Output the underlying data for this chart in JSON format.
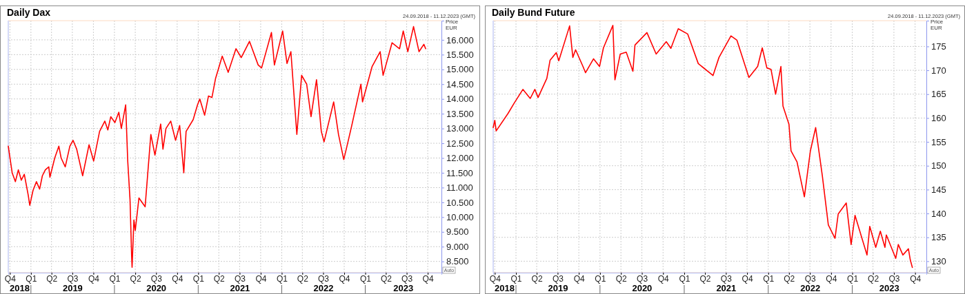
{
  "chart_data": [
    {
      "type": "line",
      "title": "Daily Dax",
      "subtitle": "24.09.2018 - 11.12.2023 (GMT)",
      "ylabel": "Price EUR",
      "grid": true,
      "marker": "none",
      "line_style": "solid",
      "xlim": [
        "2018-09-24",
        "2023-11-30"
      ],
      "ylim": [
        8120,
        16650
      ],
      "xticks": [
        {
          "value": "2018-10-01",
          "label": "Q4"
        },
        {
          "value": "2019-01-01",
          "label": "Q1"
        },
        {
          "value": "2019-04-01",
          "label": "Q2"
        },
        {
          "value": "2019-07-01",
          "label": "Q3"
        },
        {
          "value": "2019-10-01",
          "label": "Q4"
        },
        {
          "value": "2020-01-01",
          "label": "Q1"
        },
        {
          "value": "2020-04-01",
          "label": "Q2"
        },
        {
          "value": "2020-07-01",
          "label": "Q3"
        },
        {
          "value": "2020-10-01",
          "label": "Q4"
        },
        {
          "value": "2021-01-01",
          "label": "Q1"
        },
        {
          "value": "2021-04-01",
          "label": "Q2"
        },
        {
          "value": "2021-07-01",
          "label": "Q3"
        },
        {
          "value": "2021-10-01",
          "label": "Q4"
        },
        {
          "value": "2022-01-01",
          "label": "Q1"
        },
        {
          "value": "2022-04-01",
          "label": "Q2"
        },
        {
          "value": "2022-07-01",
          "label": "Q3"
        },
        {
          "value": "2022-10-01",
          "label": "Q4"
        },
        {
          "value": "2023-01-01",
          "label": "Q1"
        },
        {
          "value": "2023-04-01",
          "label": "Q2"
        },
        {
          "value": "2023-07-01",
          "label": "Q3"
        },
        {
          "value": "2023-10-01",
          "label": "Q4"
        }
      ],
      "yticks": [
        {
          "value": 8500,
          "label": "8.500"
        },
        {
          "value": 9000,
          "label": "9.000"
        },
        {
          "value": 9500,
          "label": "9.500"
        },
        {
          "value": 10000,
          "label": "10.000"
        },
        {
          "value": 10500,
          "label": "10.500"
        },
        {
          "value": 11000,
          "label": "11.000"
        },
        {
          "value": 11500,
          "label": "11.500"
        },
        {
          "value": 12000,
          "label": "12.000"
        },
        {
          "value": 12500,
          "label": "12.500"
        },
        {
          "value": 13000,
          "label": "13.000"
        },
        {
          "value": 13500,
          "label": "13.500"
        },
        {
          "value": 14000,
          "label": "14.000"
        },
        {
          "value": 14500,
          "label": "14.500"
        },
        {
          "value": 15000,
          "label": "15.000"
        },
        {
          "value": 15500,
          "label": "15.500"
        },
        {
          "value": 16000,
          "label": "16.000"
        }
      ],
      "annotations": [
        "2018",
        "2019",
        "2020",
        "2021",
        "2022",
        "2023",
        "Auto"
      ],
      "series": [
        {
          "color": "#ff0000",
          "x": [
            "2018-09-24",
            "2018-10-11",
            "2018-10-25",
            "2018-11-07",
            "2018-11-20",
            "2018-12-03",
            "2018-12-20",
            "2018-12-27",
            "2019-01-10",
            "2019-01-25",
            "2019-02-08",
            "2019-02-20",
            "2019-03-05",
            "2019-03-20",
            "2019-03-25",
            "2019-04-15",
            "2019-05-03",
            "2019-05-13",
            "2019-05-31",
            "2019-06-20",
            "2019-07-04",
            "2019-07-20",
            "2019-08-15",
            "2019-09-12",
            "2019-10-02",
            "2019-10-28",
            "2019-11-20",
            "2019-12-03",
            "2019-12-16",
            "2020-01-03",
            "2020-01-20",
            "2020-01-31",
            "2020-02-19",
            "2020-02-28",
            "2020-03-09",
            "2020-03-16",
            "2020-03-18",
            "2020-03-26",
            "2020-04-01",
            "2020-04-17",
            "2020-05-14",
            "2020-06-08",
            "2020-06-26",
            "2020-07-21",
            "2020-07-31",
            "2020-08-13",
            "2020-09-03",
            "2020-09-24",
            "2020-10-12",
            "2020-10-30",
            "2020-11-09",
            "2020-12-10",
            "2020-12-29",
            "2021-01-08",
            "2021-01-29",
            "2021-02-15",
            "2021-03-02",
            "2021-03-18",
            "2021-04-16",
            "2021-05-12",
            "2021-06-15",
            "2021-07-08",
            "2021-08-13",
            "2021-09-20",
            "2021-10-05",
            "2021-11-17",
            "2021-11-30",
            "2022-01-05",
            "2022-01-24",
            "2022-02-10",
            "2022-03-08",
            "2022-03-29",
            "2022-04-20",
            "2022-05-09",
            "2022-06-02",
            "2022-06-23",
            "2022-07-05",
            "2022-08-16",
            "2022-09-06",
            "2022-09-29",
            "2022-10-10",
            "2022-11-03",
            "2022-12-13",
            "2022-12-20",
            "2023-01-31",
            "2023-03-07",
            "2023-03-20",
            "2023-04-28",
            "2023-05-31",
            "2023-06-16",
            "2023-07-06",
            "2023-07-31",
            "2023-08-24",
            "2023-09-14",
            "2023-09-22"
          ],
          "values": [
            12400,
            11500,
            11200,
            11600,
            11250,
            11450,
            10750,
            10400,
            10900,
            11200,
            10950,
            11400,
            11600,
            11700,
            11350,
            12000,
            12400,
            12000,
            11700,
            12400,
            12600,
            12300,
            11400,
            12450,
            11900,
            12900,
            13250,
            12950,
            13400,
            13200,
            13550,
            13000,
            13800,
            11900,
            10600,
            8700,
            8300,
            9900,
            9550,
            10650,
            10350,
            12800,
            12100,
            13150,
            12300,
            13000,
            13250,
            12600,
            13100,
            11500,
            12900,
            13300,
            13800,
            14000,
            13450,
            14100,
            14050,
            14700,
            15450,
            14900,
            15700,
            15400,
            15950,
            15150,
            15050,
            16250,
            15150,
            16300,
            15200,
            15600,
            12800,
            14800,
            14500,
            13400,
            14650,
            12900,
            12550,
            13900,
            12800,
            11950,
            12300,
            13100,
            14500,
            13900,
            15100,
            15600,
            14800,
            15900,
            15700,
            16300,
            15600,
            16450,
            15600,
            15850,
            15700
          ]
        }
      ]
    },
    {
      "type": "line",
      "title": "Daily Bund Future",
      "subtitle": "24.09.2018 - 11.12.2023 (GMT)",
      "ylabel": "Price EUR",
      "grid": true,
      "marker": "none",
      "line_style": "solid",
      "xlim": [
        "2018-09-24",
        "2023-11-19"
      ],
      "ylim": [
        127.6,
        180.4
      ],
      "xticks": [
        {
          "value": "2018-10-01",
          "label": "Q4"
        },
        {
          "value": "2019-01-01",
          "label": "Q1"
        },
        {
          "value": "2019-04-01",
          "label": "Q2"
        },
        {
          "value": "2019-07-01",
          "label": "Q3"
        },
        {
          "value": "2019-10-01",
          "label": "Q4"
        },
        {
          "value": "2020-01-01",
          "label": "Q1"
        },
        {
          "value": "2020-04-01",
          "label": "Q2"
        },
        {
          "value": "2020-07-01",
          "label": "Q3"
        },
        {
          "value": "2020-10-01",
          "label": "Q4"
        },
        {
          "value": "2021-01-01",
          "label": "Q1"
        },
        {
          "value": "2021-04-01",
          "label": "Q2"
        },
        {
          "value": "2021-07-01",
          "label": "Q3"
        },
        {
          "value": "2021-10-01",
          "label": "Q4"
        },
        {
          "value": "2022-01-01",
          "label": "Q1"
        },
        {
          "value": "2022-04-01",
          "label": "Q2"
        },
        {
          "value": "2022-07-01",
          "label": "Q3"
        },
        {
          "value": "2022-10-01",
          "label": "Q4"
        },
        {
          "value": "2023-01-01",
          "label": "Q1"
        },
        {
          "value": "2023-04-01",
          "label": "Q2"
        },
        {
          "value": "2023-07-01",
          "label": "Q3"
        },
        {
          "value": "2023-10-01",
          "label": "Q4"
        }
      ],
      "yticks": [
        130,
        135,
        140,
        145,
        150,
        155,
        160,
        165,
        170,
        175
      ],
      "annotations": [
        "2018",
        "2019",
        "2020",
        "2021",
        "2022",
        "2023",
        "Auto"
      ],
      "series": [
        {
          "color": "#ff0000",
          "x": [
            "2018-09-24",
            "2018-10-01",
            "2018-10-07",
            "2018-11-28",
            "2018-12-24",
            "2019-01-31",
            "2019-03-04",
            "2019-03-24",
            "2019-04-07",
            "2019-05-15",
            "2019-05-29",
            "2019-06-25",
            "2019-07-06",
            "2019-08-22",
            "2019-09-05",
            "2019-09-17",
            "2019-10-19",
            "2019-10-30",
            "2019-12-04",
            "2019-12-30",
            "2020-01-16",
            "2020-02-26",
            "2020-03-06",
            "2020-03-29",
            "2020-04-24",
            "2020-05-23",
            "2020-06-01",
            "2020-07-23",
            "2020-09-01",
            "2020-10-15",
            "2020-11-04",
            "2020-12-06",
            "2021-01-16",
            "2021-03-03",
            "2021-05-06",
            "2021-06-01",
            "2021-07-23",
            "2021-08-18",
            "2021-10-09",
            "2021-11-16",
            "2021-12-06",
            "2021-12-26",
            "2022-01-13",
            "2022-02-02",
            "2022-02-25",
            "2022-03-06",
            "2022-04-01",
            "2022-04-10",
            "2022-05-06",
            "2022-06-07",
            "2022-07-03",
            "2022-07-26",
            "2022-08-24",
            "2022-09-19",
            "2022-10-18",
            "2022-11-01",
            "2022-12-06",
            "2022-12-27",
            "2023-01-13",
            "2023-03-06",
            "2023-03-18",
            "2023-04-13",
            "2023-05-03",
            "2023-05-23",
            "2023-05-29",
            "2023-07-09",
            "2023-07-20",
            "2023-08-09",
            "2023-09-02",
            "2023-09-10",
            "2023-09-19"
          ],
          "values": [
            158,
            159.5,
            157.3,
            161,
            163.1,
            166,
            164.1,
            166,
            164.3,
            168.3,
            172.1,
            173.7,
            172,
            179.3,
            172.7,
            174.3,
            170.8,
            169.5,
            172.4,
            170.8,
            174.7,
            179.4,
            168,
            173.4,
            173.8,
            169.8,
            175.3,
            177.9,
            173.4,
            176,
            174.6,
            178.7,
            177.6,
            171.4,
            168.9,
            172.7,
            177.2,
            176.3,
            168.5,
            170.8,
            174.7,
            170.5,
            170.2,
            165,
            170.8,
            162.5,
            158.7,
            153.1,
            150.8,
            143.5,
            153.1,
            158,
            147.9,
            137.6,
            134.8,
            139.9,
            142.2,
            133.5,
            139.6,
            131.3,
            137.3,
            132.9,
            136.3,
            132.9,
            135.5,
            130.6,
            133.5,
            131.3,
            132.6,
            130.3,
            128.7
          ]
        }
      ]
    }
  ]
}
